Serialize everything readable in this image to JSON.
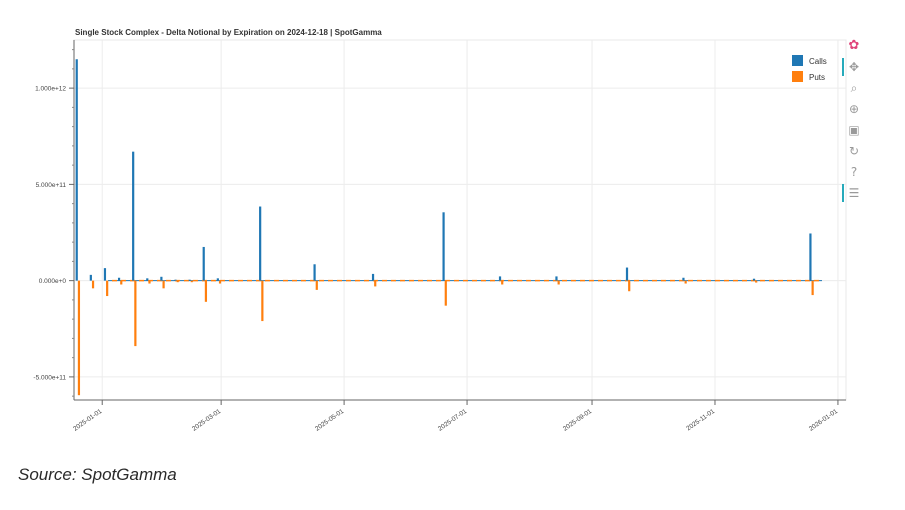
{
  "chart_data": {
    "type": "bar",
    "title": "Single Stock Complex - Delta Notional by Expiration on 2024-12-18 | SpotGamma",
    "xlabel": "",
    "ylabel": "",
    "x_range": [
      "2024-12-18",
      "2026-01-05"
    ],
    "ylim": [
      -620000000000.0,
      1250000000000.0
    ],
    "x_tick_labels": [
      "2025-01-01",
      "2025-03-01",
      "2025-05-01",
      "2025-07-01",
      "2025-09-01",
      "2025-11-01",
      "2026-01-01"
    ],
    "y_ticks": [
      -500000000000.0,
      0,
      500000000000.0,
      1000000000000.0
    ],
    "y_tick_labels": [
      "-5.000e+11",
      "0.000e+0",
      "5.000e+11",
      "1.000e+12"
    ],
    "grid": true,
    "legend_position": "top-right",
    "colors": {
      "calls": "#1f77b4",
      "puts": "#ff7f0e"
    },
    "series": [
      {
        "name": "Calls",
        "points": [
          [
            "2024-12-20",
            1150000000000.0
          ],
          [
            "2024-12-27",
            30000000000.0
          ],
          [
            "2025-01-03",
            65000000000.0
          ],
          [
            "2025-01-10",
            15000000000.0
          ],
          [
            "2025-01-17",
            670000000000.0
          ],
          [
            "2025-01-24",
            12000000000.0
          ],
          [
            "2025-01-31",
            20000000000.0
          ],
          [
            "2025-02-07",
            5000000000.0
          ],
          [
            "2025-02-14",
            5000000000.0
          ],
          [
            "2025-02-21",
            175000000000.0
          ],
          [
            "2025-02-28",
            12000000000.0
          ],
          [
            "2025-03-21",
            385000000000.0
          ],
          [
            "2025-04-17",
            85000000000.0
          ],
          [
            "2025-05-16",
            35000000000.0
          ],
          [
            "2025-06-20",
            355000000000.0
          ],
          [
            "2025-07-18",
            22000000000.0
          ],
          [
            "2025-08-15",
            22000000000.0
          ],
          [
            "2025-09-19",
            68000000000.0
          ],
          [
            "2025-10-17",
            15000000000.0
          ],
          [
            "2025-11-21",
            10000000000.0
          ],
          [
            "2025-12-19",
            245000000000.0
          ]
        ]
      },
      {
        "name": "Puts",
        "points": [
          [
            "2024-12-20",
            -595000000000.0
          ],
          [
            "2024-12-27",
            -40000000000.0
          ],
          [
            "2025-01-03",
            -80000000000.0
          ],
          [
            "2025-01-10",
            -20000000000.0
          ],
          [
            "2025-01-17",
            -340000000000.0
          ],
          [
            "2025-01-24",
            -15000000000.0
          ],
          [
            "2025-01-31",
            -40000000000.0
          ],
          [
            "2025-02-07",
            -8000000000.0
          ],
          [
            "2025-02-14",
            -8000000000.0
          ],
          [
            "2025-02-21",
            -110000000000.0
          ],
          [
            "2025-02-28",
            -15000000000.0
          ],
          [
            "2025-03-21",
            -210000000000.0
          ],
          [
            "2025-04-17",
            -48000000000.0
          ],
          [
            "2025-05-16",
            -30000000000.0
          ],
          [
            "2025-06-20",
            -130000000000.0
          ],
          [
            "2025-07-18",
            -20000000000.0
          ],
          [
            "2025-08-15",
            -20000000000.0
          ],
          [
            "2025-09-19",
            -55000000000.0
          ],
          [
            "2025-10-17",
            -15000000000.0
          ],
          [
            "2025-11-21",
            -10000000000.0
          ],
          [
            "2025-12-19",
            -75000000000.0
          ]
        ]
      }
    ]
  },
  "caption": "Source: SpotGamma",
  "toolbar": [
    {
      "name": "bokeh-logo-icon",
      "glyph": "✿",
      "active": false
    },
    {
      "name": "pan-icon",
      "glyph": "✥",
      "active": true
    },
    {
      "name": "box-zoom-icon",
      "glyph": "⌕",
      "active": false
    },
    {
      "name": "wheel-zoom-icon",
      "glyph": "⊕",
      "active": false
    },
    {
      "name": "save-icon",
      "glyph": "▣",
      "active": false
    },
    {
      "name": "reset-icon",
      "glyph": "↻",
      "active": false
    },
    {
      "name": "help-icon",
      "glyph": "?",
      "active": false
    },
    {
      "name": "hover-icon",
      "glyph": "☰",
      "active": true
    }
  ]
}
